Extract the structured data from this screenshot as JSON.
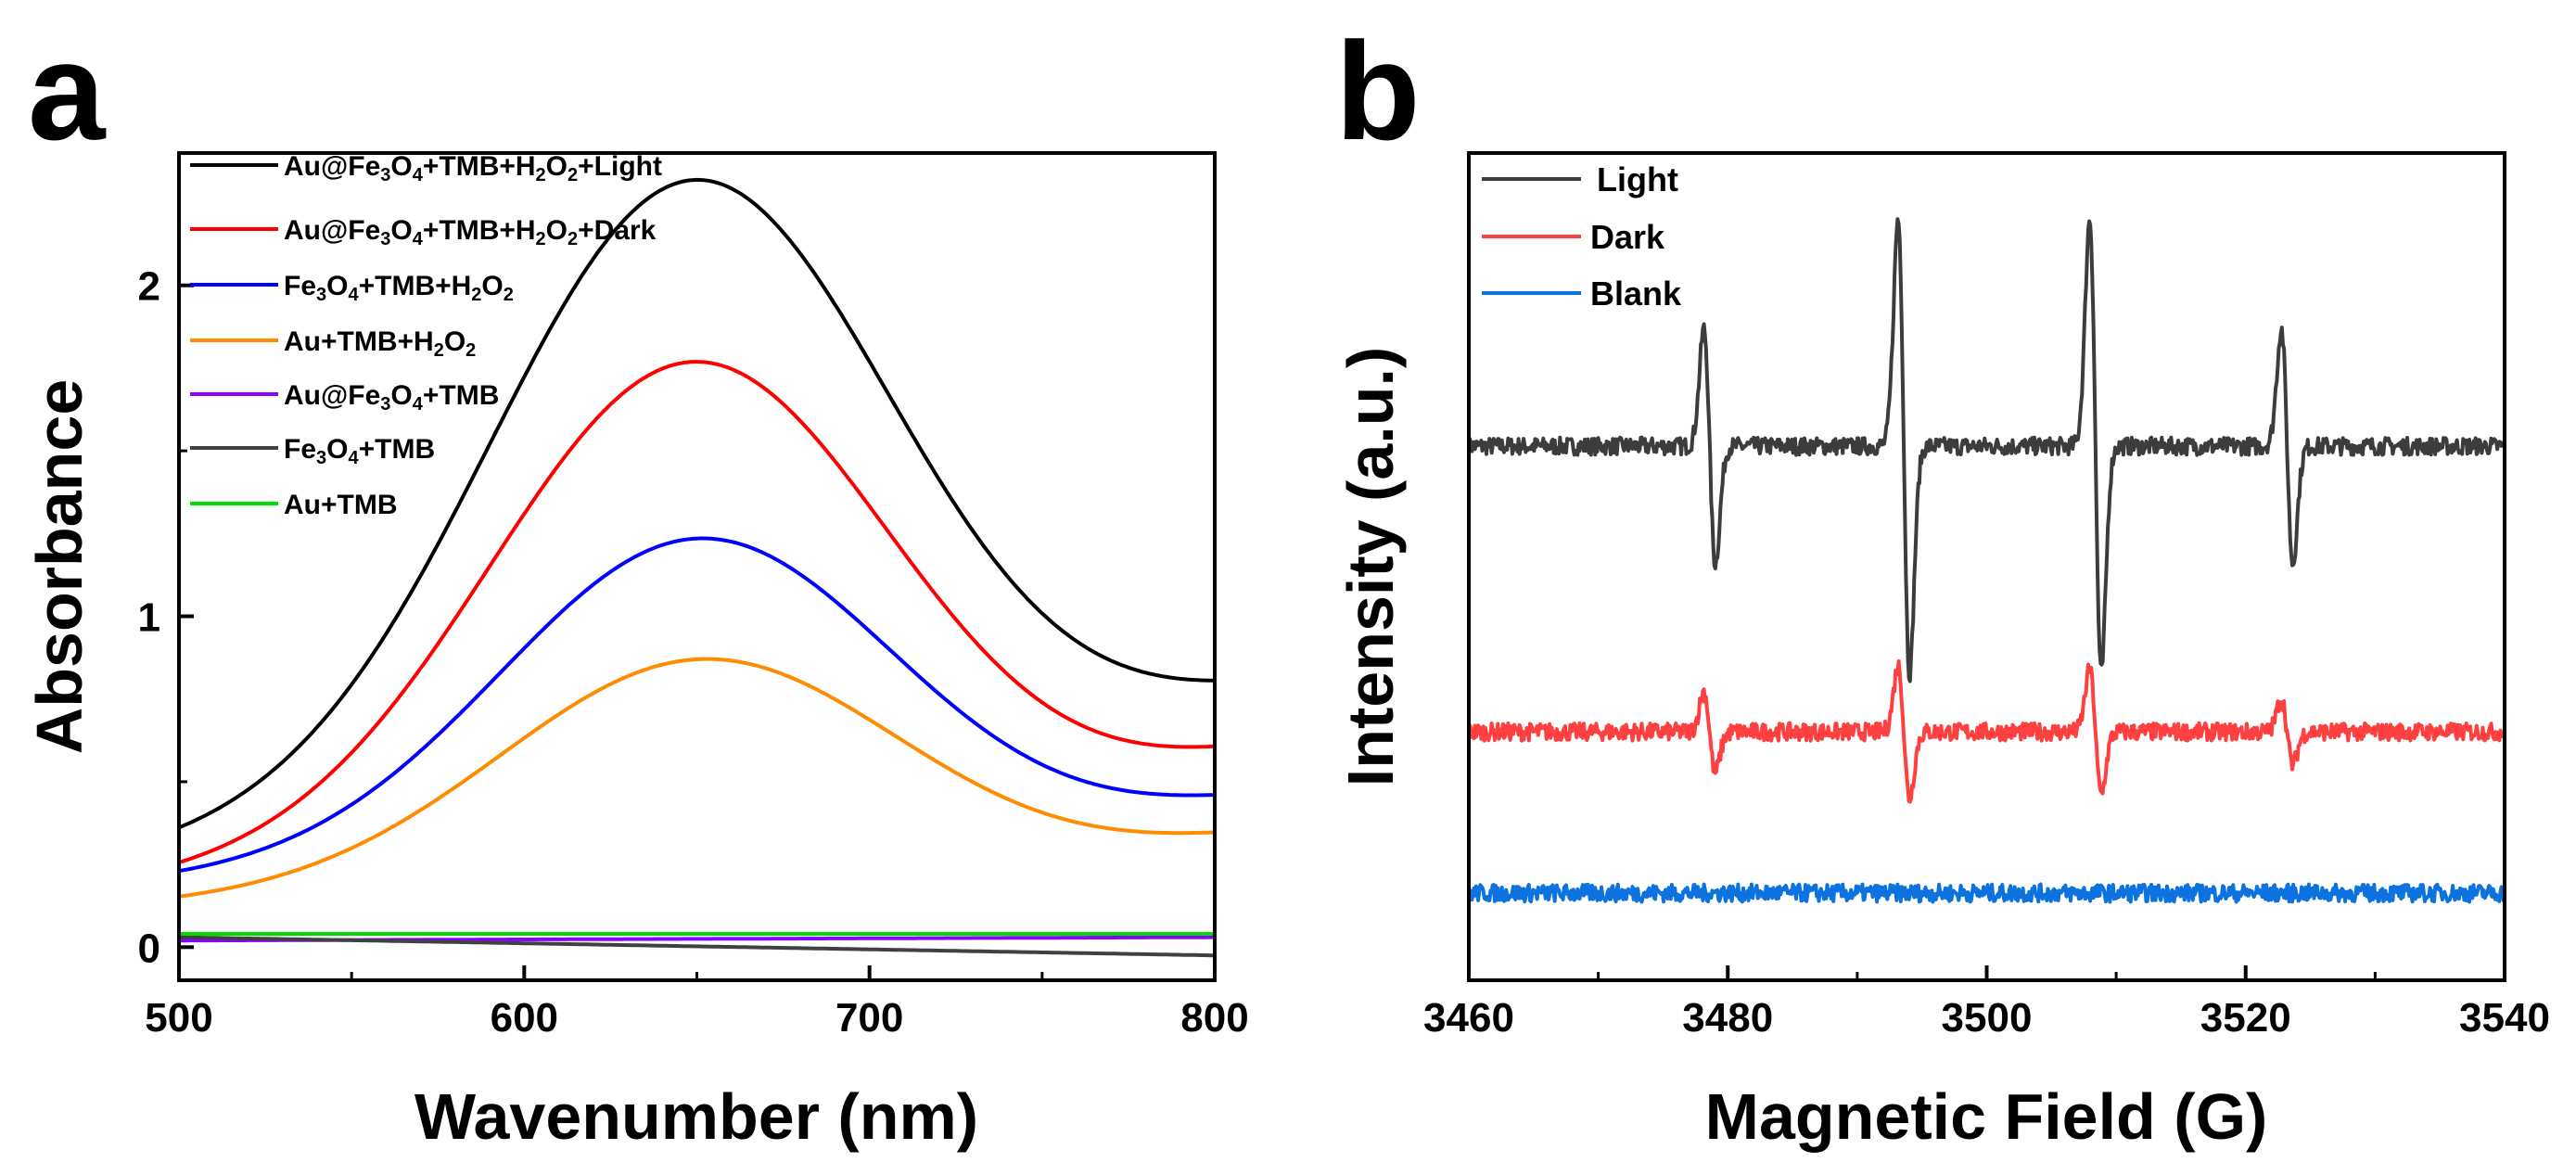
{
  "chart_data": [
    {
      "panel": "a",
      "type": "line",
      "xlabel": "Wavenumber (nm)",
      "ylabel": "Absorbance",
      "xlim": [
        500,
        800
      ],
      "ylim": [
        -0.1,
        2.4
      ],
      "xticks": [
        500,
        600,
        700,
        800
      ],
      "yticks": [
        0,
        1,
        2
      ],
      "xtick_labels": [
        "500",
        "600",
        "700",
        "800"
      ],
      "ytick_labels": [
        "0",
        "1",
        "2"
      ],
      "legend": "top-left",
      "series": [
        {
          "name": "Au@Fe3O4+TMB+H2O2+Light",
          "color": "#000000",
          "kind": "peak",
          "params": {
            "base": 0.29,
            "slope": 0.0012,
            "amp": 1.85,
            "center": 648,
            "sigma": 58,
            "tail_amp": 0.12,
            "tail_center": 830,
            "tail_sigma": 45
          }
        },
        {
          "name": "Au@Fe3O4+TMB+H2O2+Dark",
          "color": "#ff0000",
          "kind": "peak",
          "params": {
            "base": 0.2,
            "slope": 0.0008,
            "amp": 1.45,
            "center": 648,
            "sigma": 58,
            "tail_amp": 0.15,
            "tail_center": 830,
            "tail_sigma": 45
          }
        },
        {
          "name": "Fe3O4+TMB+H2O2",
          "color": "#0000ff",
          "kind": "peak",
          "params": {
            "base": 0.2,
            "slope": 0.0005,
            "amp": 0.96,
            "center": 650,
            "sigma": 57,
            "tail_amp": 0.1,
            "tail_center": 830,
            "tail_sigma": 45
          }
        },
        {
          "name": "Au+TMB+H2O2",
          "color": "#ff8c00",
          "kind": "peak",
          "params": {
            "base": 0.13,
            "slope": 0.0004,
            "amp": 0.68,
            "center": 651,
            "sigma": 58,
            "tail_amp": 0.09,
            "tail_center": 830,
            "tail_sigma": 45
          }
        },
        {
          "name": "Au@Fe3O4+TMB",
          "color": "#8b00ff",
          "kind": "flat",
          "params": {
            "start": 0.02,
            "end": 0.03
          }
        },
        {
          "name": "Fe3O4+TMB",
          "color": "#404040",
          "kind": "flat",
          "params": {
            "start": 0.03,
            "end": -0.025
          }
        },
        {
          "name": "Au+TMB",
          "color": "#00dd00",
          "kind": "flat",
          "params": {
            "start": 0.04,
            "end": 0.04
          }
        }
      ]
    },
    {
      "panel": "b",
      "type": "line",
      "xlabel": "Magnetic Field (G)",
      "ylabel": "Intensity (a.u.)",
      "xlim": [
        3460,
        3540
      ],
      "xticks": [
        3460,
        3480,
        3500,
        3520,
        3540
      ],
      "xtick_labels": [
        "3460",
        "3480",
        "3500",
        "3520",
        "3540"
      ],
      "yticks_hidden": true,
      "legend": "top-left",
      "series": [
        {
          "name": "Light",
          "color": "#3c3c3c",
          "offset": 6.1,
          "noise": 0.12,
          "lines": [
            {
              "center": 3478.6,
              "amp": 1.6
            },
            {
              "center": 3493.6,
              "amp": 3.1
            },
            {
              "center": 3508.4,
              "amp": 3.1
            },
            {
              "center": 3523.2,
              "amp": 1.6
            }
          ]
        },
        {
          "name": "Dark",
          "color": "#ff4040",
          "offset": 2.2,
          "noise": 0.12,
          "lines": [
            {
              "center": 3478.6,
              "amp": 0.55
            },
            {
              "center": 3493.6,
              "amp": 0.9
            },
            {
              "center": 3508.4,
              "amp": 0.85
            },
            {
              "center": 3523.2,
              "amp": 0.45
            }
          ]
        },
        {
          "name": "Blank",
          "color": "#0b72e0",
          "offset": 0.0,
          "noise": 0.12,
          "lines": []
        }
      ]
    }
  ]
}
